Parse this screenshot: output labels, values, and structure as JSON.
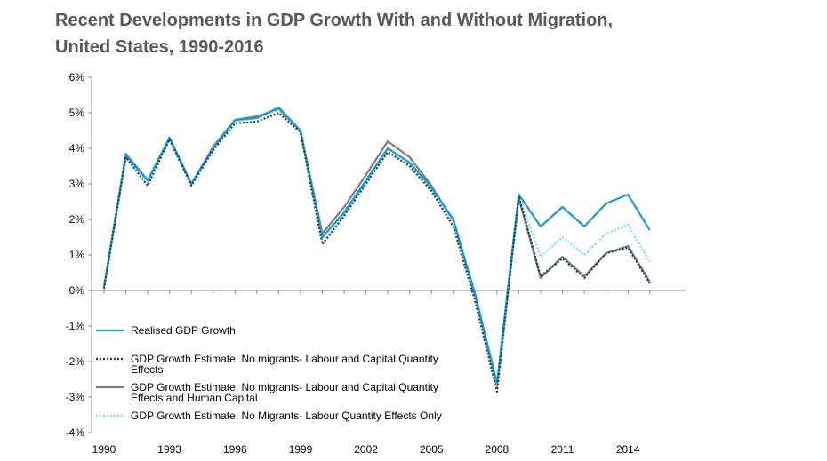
{
  "chart_data": {
    "type": "line",
    "title_line1": "Recent Developments in GDP Growth With and Without Migration,",
    "title_line2": "United States, 1990-2016",
    "x": [
      1990,
      1991,
      1992,
      1993,
      1994,
      1995,
      1996,
      1997,
      1998,
      1999,
      2000,
      2001,
      2002,
      2003,
      2004,
      2005,
      2006,
      2007,
      2008,
      2009,
      2010,
      2011,
      2012,
      2013,
      2014,
      2015
    ],
    "x_tick_labels": [
      "1990",
      "1993",
      "1996",
      "1999",
      "2002",
      "2005",
      "2008",
      "2011",
      "2014"
    ],
    "x_tick_values": [
      1990,
      1993,
      1996,
      1999,
      2002,
      2005,
      2008,
      2011,
      2014
    ],
    "y_tick_labels": [
      "6%",
      "5%",
      "4%",
      "3%",
      "2%",
      "1%",
      "0%",
      "-1%",
      "-2%",
      "-3%",
      "-4%"
    ],
    "y_tick_values": [
      6,
      5,
      4,
      3,
      2,
      1,
      0,
      -1,
      -2,
      -3,
      -4
    ],
    "ylim": [
      -4,
      6
    ],
    "legend_position": "bottom-left",
    "series": [
      {
        "name": "Realised GDP Growth",
        "color": "#1a9ad6",
        "style": "solid",
        "values": [
          0.1,
          3.8,
          3.1,
          4.3,
          3.0,
          4.0,
          4.8,
          4.85,
          5.15,
          4.5,
          1.5,
          2.2,
          3.1,
          4.0,
          3.6,
          2.9,
          2.0,
          -0.1,
          -2.6,
          2.7,
          1.8,
          2.35,
          1.8,
          2.45,
          2.7,
          1.7
        ]
      },
      {
        "name": "GDP Growth Estimate:  No migrants- Labour and Capital Quantity Effects",
        "legend_lines": [
          "GDP Growth Estimate:  No migrants- Labour and Capital Quantity",
          "Effects"
        ],
        "color": "#173f4f",
        "style": "dotted",
        "values": [
          0.05,
          3.75,
          2.95,
          4.25,
          2.95,
          3.95,
          4.7,
          4.75,
          5.0,
          4.45,
          1.3,
          2.1,
          3.0,
          3.9,
          3.5,
          2.8,
          1.8,
          -0.3,
          -2.85,
          2.65,
          0.4,
          0.9,
          0.35,
          1.05,
          1.2,
          0.2
        ]
      },
      {
        "name": "GDP Growth Estimate:  No migrants- Labour and Capital Quantity Effects and Human Capital",
        "legend_lines": [
          "GDP Growth Estimate:  No migrants- Labour and Capital Quantity",
          "Effects and Human Capital"
        ],
        "color": "#7f7f7f",
        "style": "solid",
        "values": [
          0.1,
          3.85,
          3.1,
          4.3,
          3.0,
          4.05,
          4.8,
          4.9,
          5.1,
          4.5,
          1.6,
          2.35,
          3.25,
          4.2,
          3.75,
          2.95,
          1.95,
          -0.15,
          -2.7,
          2.6,
          0.35,
          0.95,
          0.4,
          1.05,
          1.25,
          0.25
        ]
      },
      {
        "name": "GDP Growth Estimate: No Migrants- Labour Quantity Effects Only",
        "legend_lines": [
          "GDP Growth Estimate: No Migrants- Labour Quantity Effects Only"
        ],
        "color": "#7fd6f2",
        "style": "dotted",
        "values": [
          0.1,
          3.8,
          3.05,
          4.3,
          3.0,
          4.0,
          4.75,
          4.85,
          5.1,
          4.5,
          1.45,
          2.15,
          3.05,
          4.0,
          3.55,
          2.85,
          1.95,
          -0.2,
          -2.7,
          2.65,
          0.95,
          1.5,
          1.0,
          1.6,
          1.85,
          0.8
        ]
      }
    ]
  }
}
